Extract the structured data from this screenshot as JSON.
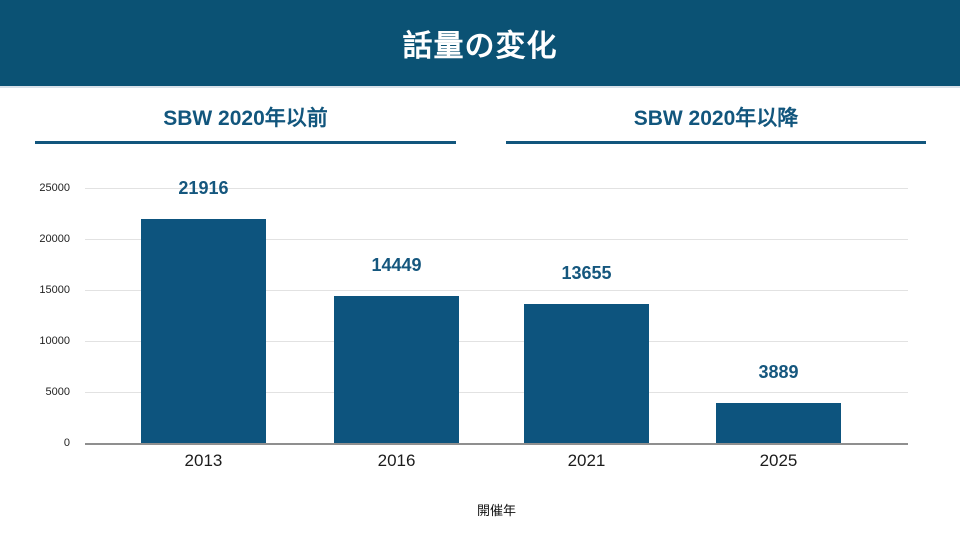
{
  "header": {
    "title": "話量の変化",
    "bg_color": "#0B5274",
    "text_color": "#FFFFFF"
  },
  "sections": [
    {
      "label": "SBW 2020年以前"
    },
    {
      "label": "SBW 2020年以降"
    }
  ],
  "chart_data": {
    "type": "bar",
    "categories": [
      "2013",
      "2016",
      "2021",
      "2025"
    ],
    "values": [
      21916,
      14449,
      13655,
      3889
    ],
    "value_labels": [
      "21916",
      "14449",
      "13655",
      "3889"
    ],
    "title": "話量の変化",
    "xlabel": "開催年",
    "ylabel": "",
    "ylim": [
      0,
      25000
    ],
    "yticks": [
      0,
      5000,
      10000,
      15000,
      20000,
      25000
    ],
    "grid": true,
    "legend": "none",
    "bar_color": "#0D547E",
    "value_label_color": "#15577E",
    "gridline_color": "#E2E2E2",
    "baseline_color": "#8F8F8F"
  }
}
